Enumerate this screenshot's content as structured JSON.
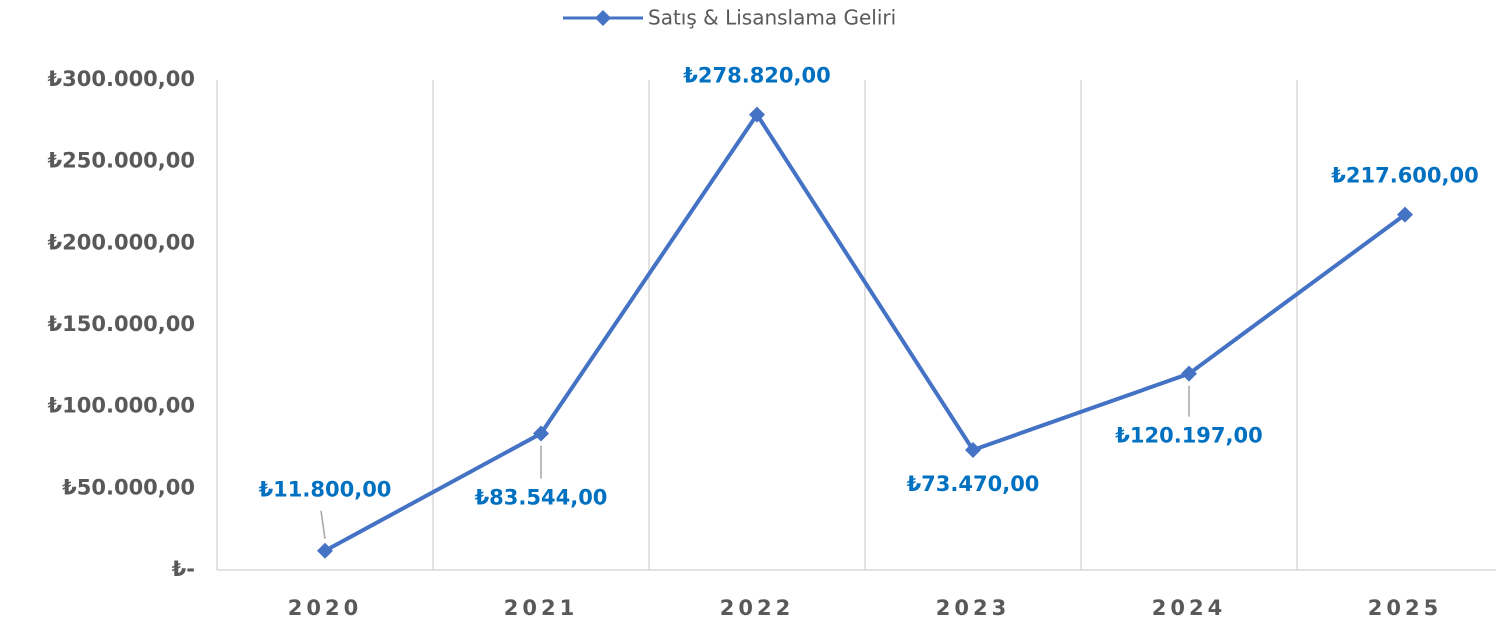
{
  "chart_data": {
    "type": "line",
    "categories": [
      "2020",
      "2021",
      "2022",
      "2023",
      "2024",
      "2025"
    ],
    "series": [
      {
        "name": "Satış & Lisanslama Geliri",
        "color": "#4472c4",
        "values": [
          11800,
          83544,
          278820,
          73470,
          120197,
          217600
        ],
        "value_labels": [
          "₺11.800,00",
          "₺83.544,00",
          "₺278.820,00",
          "₺73.470,00",
          "₺120.197,00",
          "₺217.600,00"
        ]
      }
    ],
    "ylim": [
      0,
      300000
    ],
    "yticks": [
      {
        "value": 0,
        "label": "₺-"
      },
      {
        "value": 50000,
        "label": "₺50.000,00"
      },
      {
        "value": 100000,
        "label": "₺100.000,00"
      },
      {
        "value": 150000,
        "label": "₺150.000,00"
      },
      {
        "value": 200000,
        "label": "₺200.000,00"
      },
      {
        "value": 250000,
        "label": "₺250.000,00"
      },
      {
        "value": 300000,
        "label": "₺300.000,00"
      }
    ],
    "legend": "top",
    "grid": "vertical"
  }
}
